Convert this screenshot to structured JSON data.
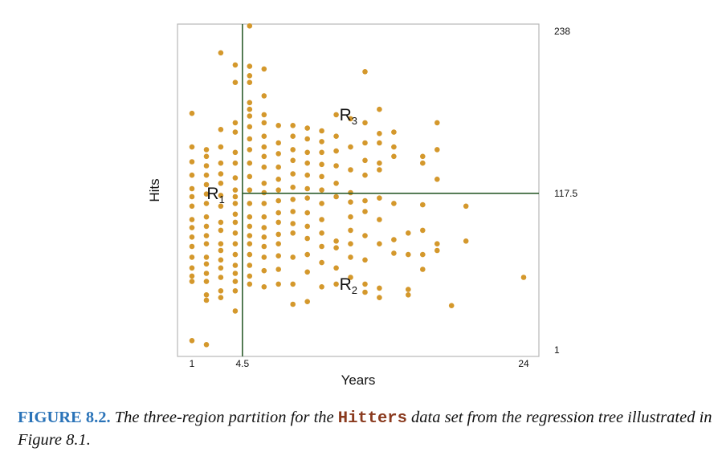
{
  "chart_data": {
    "type": "scatter",
    "xlabel": "Years",
    "ylabel": "Hits",
    "xlim": [
      1,
      24
    ],
    "ylim": [
      1,
      238
    ],
    "x_ticks": [
      "1",
      "4.5",
      "24"
    ],
    "right_ticks": [
      "238",
      "117.5",
      "1"
    ],
    "point_color": "#d4982c",
    "line_color": "#2e5e2e",
    "splits": {
      "vertical_x": 4.5,
      "horizontal_y": 117.5
    },
    "regions": [
      {
        "base": "R",
        "sub": "1",
        "x": 1.8,
        "y": 117.5
      },
      {
        "base": "R",
        "sub": "2",
        "x": 11,
        "y": 50
      },
      {
        "base": "R",
        "sub": "3",
        "x": 11,
        "y": 176
      }
    ],
    "points": [
      [
        1,
        177
      ],
      [
        1,
        152
      ],
      [
        1,
        141
      ],
      [
        1,
        131
      ],
      [
        1,
        121
      ],
      [
        1,
        115
      ],
      [
        1,
        108
      ],
      [
        1,
        98
      ],
      [
        1,
        92
      ],
      [
        1,
        85
      ],
      [
        1,
        78
      ],
      [
        1,
        70
      ],
      [
        1,
        62
      ],
      [
        1,
        56
      ],
      [
        1,
        52
      ],
      [
        1,
        8
      ],
      [
        2,
        150
      ],
      [
        2,
        145
      ],
      [
        2,
        138
      ],
      [
        2,
        131
      ],
      [
        2,
        124
      ],
      [
        2,
        117
      ],
      [
        2,
        110
      ],
      [
        2,
        100
      ],
      [
        2,
        93
      ],
      [
        2,
        86
      ],
      [
        2,
        80
      ],
      [
        2,
        70
      ],
      [
        2,
        65
      ],
      [
        2,
        58
      ],
      [
        2,
        52
      ],
      [
        2,
        42
      ],
      [
        2,
        38
      ],
      [
        2,
        5
      ],
      [
        3,
        222
      ],
      [
        3,
        165
      ],
      [
        3,
        152
      ],
      [
        3,
        140
      ],
      [
        3,
        132
      ],
      [
        3,
        125
      ],
      [
        3,
        116
      ],
      [
        3,
        108
      ],
      [
        3,
        96
      ],
      [
        3,
        90
      ],
      [
        3,
        80
      ],
      [
        3,
        75
      ],
      [
        3,
        68
      ],
      [
        3,
        62
      ],
      [
        3,
        55
      ],
      [
        3,
        45
      ],
      [
        3,
        40
      ],
      [
        4,
        213
      ],
      [
        4,
        200
      ],
      [
        4,
        170
      ],
      [
        4,
        163
      ],
      [
        4,
        148
      ],
      [
        4,
        140
      ],
      [
        4,
        129
      ],
      [
        4,
        120
      ],
      [
        4,
        115
      ],
      [
        4,
        110
      ],
      [
        4,
        102
      ],
      [
        4,
        96
      ],
      [
        4,
        88
      ],
      [
        4,
        80
      ],
      [
        4,
        72
      ],
      [
        4,
        64
      ],
      [
        4,
        58
      ],
      [
        4,
        52
      ],
      [
        4,
        45
      ],
      [
        4,
        30
      ],
      [
        5,
        242
      ],
      [
        5,
        212
      ],
      [
        5,
        205
      ],
      [
        5,
        200
      ],
      [
        5,
        185
      ],
      [
        5,
        180
      ],
      [
        5,
        175
      ],
      [
        5,
        167
      ],
      [
        5,
        158
      ],
      [
        5,
        150
      ],
      [
        5,
        140
      ],
      [
        5,
        130
      ],
      [
        5,
        120
      ],
      [
        5,
        110
      ],
      [
        5,
        100
      ],
      [
        5,
        93
      ],
      [
        5,
        86
      ],
      [
        5,
        80
      ],
      [
        5,
        72
      ],
      [
        5,
        64
      ],
      [
        5,
        56
      ],
      [
        5,
        50
      ],
      [
        6,
        210
      ],
      [
        6,
        190
      ],
      [
        6,
        176
      ],
      [
        6,
        170
      ],
      [
        6,
        160
      ],
      [
        6,
        152
      ],
      [
        6,
        145
      ],
      [
        6,
        137
      ],
      [
        6,
        125
      ],
      [
        6,
        118
      ],
      [
        6,
        110
      ],
      [
        6,
        100
      ],
      [
        6,
        92
      ],
      [
        6,
        85
      ],
      [
        6,
        78
      ],
      [
        6,
        70
      ],
      [
        6,
        60
      ],
      [
        6,
        48
      ],
      [
        7,
        168
      ],
      [
        7,
        155
      ],
      [
        7,
        147
      ],
      [
        7,
        137
      ],
      [
        7,
        128
      ],
      [
        7,
        120
      ],
      [
        7,
        112
      ],
      [
        7,
        103
      ],
      [
        7,
        96
      ],
      [
        7,
        87
      ],
      [
        7,
        80
      ],
      [
        7,
        71
      ],
      [
        7,
        61
      ],
      [
        7,
        50
      ],
      [
        8,
        168
      ],
      [
        8,
        160
      ],
      [
        8,
        150
      ],
      [
        8,
        142
      ],
      [
        8,
        132
      ],
      [
        8,
        122
      ],
      [
        8,
        113
      ],
      [
        8,
        104
      ],
      [
        8,
        95
      ],
      [
        8,
        88
      ],
      [
        8,
        70
      ],
      [
        8,
        50
      ],
      [
        8,
        35
      ],
      [
        9,
        166
      ],
      [
        9,
        158
      ],
      [
        9,
        148
      ],
      [
        9,
        140
      ],
      [
        9,
        131
      ],
      [
        9,
        121
      ],
      [
        9,
        114
      ],
      [
        9,
        103
      ],
      [
        9,
        93
      ],
      [
        9,
        84
      ],
      [
        9,
        72
      ],
      [
        9,
        59
      ],
      [
        9,
        37
      ],
      [
        10,
        164
      ],
      [
        10,
        156
      ],
      [
        10,
        148
      ],
      [
        10,
        139
      ],
      [
        10,
        130
      ],
      [
        10,
        120
      ],
      [
        10,
        110
      ],
      [
        10,
        98
      ],
      [
        10,
        88
      ],
      [
        10,
        78
      ],
      [
        10,
        66
      ],
      [
        10,
        48
      ],
      [
        11,
        176
      ],
      [
        11,
        160
      ],
      [
        11,
        149
      ],
      [
        11,
        138
      ],
      [
        11,
        125
      ],
      [
        11,
        115
      ],
      [
        11,
        82
      ],
      [
        11,
        77
      ],
      [
        11,
        62
      ],
      [
        11,
        50
      ],
      [
        12,
        173
      ],
      [
        12,
        152
      ],
      [
        12,
        135
      ],
      [
        12,
        118
      ],
      [
        12,
        111
      ],
      [
        12,
        100
      ],
      [
        12,
        90
      ],
      [
        12,
        80
      ],
      [
        12,
        70
      ],
      [
        12,
        55
      ],
      [
        13,
        208
      ],
      [
        13,
        170
      ],
      [
        13,
        155
      ],
      [
        13,
        142
      ],
      [
        13,
        131
      ],
      [
        13,
        112
      ],
      [
        13,
        104
      ],
      [
        13,
        86
      ],
      [
        13,
        68
      ],
      [
        13,
        50
      ],
      [
        13,
        44
      ],
      [
        14,
        180
      ],
      [
        14,
        162
      ],
      [
        14,
        155
      ],
      [
        14,
        140
      ],
      [
        14,
        135
      ],
      [
        14,
        114
      ],
      [
        14,
        98
      ],
      [
        14,
        80
      ],
      [
        14,
        47
      ],
      [
        14,
        40
      ],
      [
        15,
        163
      ],
      [
        15,
        152
      ],
      [
        15,
        145
      ],
      [
        15,
        110
      ],
      [
        15,
        83
      ],
      [
        15,
        73
      ],
      [
        16,
        88
      ],
      [
        16,
        72
      ],
      [
        16,
        46
      ],
      [
        16,
        42
      ],
      [
        17,
        145
      ],
      [
        17,
        140
      ],
      [
        17,
        109
      ],
      [
        17,
        90
      ],
      [
        17,
        72
      ],
      [
        17,
        61
      ],
      [
        18,
        170
      ],
      [
        18,
        150
      ],
      [
        18,
        128
      ],
      [
        18,
        80
      ],
      [
        18,
        75
      ],
      [
        19,
        34
      ],
      [
        20,
        108
      ],
      [
        20,
        82
      ],
      [
        24,
        55
      ]
    ]
  },
  "caption": {
    "label": "FIGURE 8.2.",
    "text_before": "The three-region partition for the",
    "code": "Hitters",
    "text_after": "data set from the regression tree illustrated in Figure 8.1."
  }
}
